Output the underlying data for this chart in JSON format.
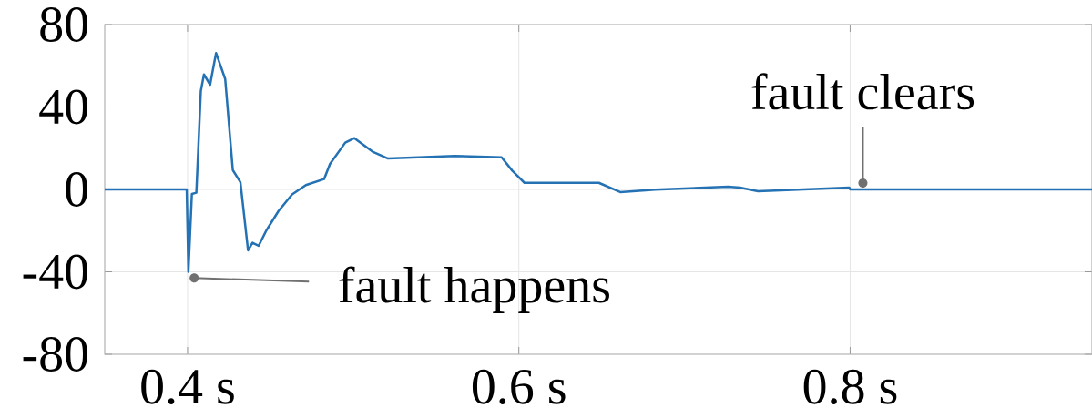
{
  "chart_data": {
    "type": "line",
    "x": [
      0.35,
      0.3995,
      0.4005,
      0.4026,
      0.4053,
      0.408,
      0.4099,
      0.4136,
      0.4172,
      0.4227,
      0.4273,
      0.4319,
      0.4365,
      0.4392,
      0.4429,
      0.4475,
      0.4549,
      0.4631,
      0.4714,
      0.4824,
      0.486,
      0.4952,
      0.5007,
      0.5117,
      0.5133,
      0.521,
      0.5612,
      0.5896,
      0.596,
      0.6034,
      0.6483,
      0.6612,
      0.6823,
      0.7263,
      0.7335,
      0.7444,
      0.7995,
      0.8,
      0.946
    ],
    "values": [
      0,
      0,
      -40,
      -2.2,
      -1.6,
      47.7,
      55.8,
      50.8,
      66.2,
      53.6,
      9.4,
      3.5,
      -29.6,
      -25.9,
      -27.4,
      -20,
      -10.5,
      -2.4,
      2.1,
      5,
      12.4,
      22.7,
      24.9,
      18.3,
      17.7,
      15,
      16.2,
      15.6,
      9.1,
      3.2,
      3.2,
      -1.3,
      -0.1,
      1.3,
      0.9,
      -0.9,
      0.9,
      0,
      0
    ],
    "color": "#2472b4",
    "xlim": [
      0.35,
      0.946
    ],
    "ylim": [
      -80,
      80
    ],
    "xticks": [
      {
        "value": 0.4,
        "label": "0.4 s"
      },
      {
        "value": 0.6,
        "label": "0.6 s"
      },
      {
        "value": 0.8,
        "label": "0.8 s"
      }
    ],
    "yticks": [
      -80,
      -40,
      0,
      40,
      80
    ],
    "grid": true,
    "annotations": [
      {
        "text": "fault happens",
        "x": 0.404,
        "y": -43
      },
      {
        "text": "fault clears",
        "x": 0.8077,
        "y": 3.1
      }
    ]
  }
}
